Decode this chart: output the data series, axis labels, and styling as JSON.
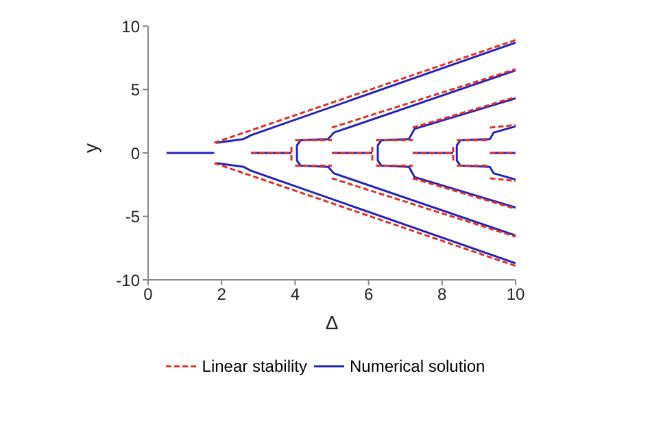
{
  "chart_data": {
    "type": "line",
    "xlabel": "Δ",
    "ylabel": "y",
    "xlim": [
      0,
      10
    ],
    "xticks": [
      0,
      2,
      4,
      6,
      8,
      10
    ],
    "ylim": [
      -10,
      10
    ],
    "yticks": [
      -10,
      -5,
      0,
      5,
      10
    ],
    "grid": false,
    "legend": "bottom",
    "marker": "none",
    "series": [
      {
        "name": "Linear stability",
        "color": "#e0312b",
        "line_style": "dashed",
        "x": [
          1.8,
          10
        ],
        "values": [
          0.8,
          8.9
        ]
      },
      {
        "color": "#e0312b",
        "line_style": "dashed",
        "x": [
          1.8,
          10
        ],
        "values": [
          -0.8,
          -8.9
        ]
      },
      {
        "color": "#e0312b",
        "line_style": "dashed",
        "x": [
          2.8,
          3.9
        ],
        "values": [
          0,
          0
        ]
      },
      {
        "color": "#e0312b",
        "line_style": "dashed",
        "x": [
          3.9,
          3.9
        ],
        "values": [
          -0.6,
          0.6
        ]
      },
      {
        "color": "#e0312b",
        "line_style": "dashed",
        "x": [
          4.0,
          5.0
        ],
        "values": [
          1.0,
          1.0
        ]
      },
      {
        "color": "#e0312b",
        "line_style": "dashed",
        "x": [
          4.0,
          5.0
        ],
        "values": [
          -1.0,
          -1.0
        ]
      },
      {
        "color": "#e0312b",
        "line_style": "dashed",
        "x": [
          5.0,
          10
        ],
        "values": [
          2.0,
          6.6
        ]
      },
      {
        "color": "#e0312b",
        "line_style": "dashed",
        "x": [
          5.0,
          10
        ],
        "values": [
          -2.0,
          -6.6
        ]
      },
      {
        "color": "#e0312b",
        "line_style": "dashed",
        "x": [
          5.0,
          6.1
        ],
        "values": [
          0,
          0
        ]
      },
      {
        "color": "#e0312b",
        "line_style": "dashed",
        "x": [
          6.1,
          6.1
        ],
        "values": [
          -0.6,
          0.6
        ]
      },
      {
        "color": "#e0312b",
        "line_style": "dashed",
        "x": [
          6.2,
          7.2
        ],
        "values": [
          1.0,
          1.0
        ]
      },
      {
        "color": "#e0312b",
        "line_style": "dashed",
        "x": [
          6.2,
          7.2
        ],
        "values": [
          -1.0,
          -1.0
        ]
      },
      {
        "color": "#e0312b",
        "line_style": "dashed",
        "x": [
          7.2,
          10
        ],
        "values": [
          2.0,
          4.4
        ]
      },
      {
        "color": "#e0312b",
        "line_style": "dashed",
        "x": [
          7.2,
          10
        ],
        "values": [
          -2.0,
          -4.4
        ]
      },
      {
        "color": "#e0312b",
        "line_style": "dashed",
        "x": [
          7.2,
          8.3
        ],
        "values": [
          0,
          0
        ]
      },
      {
        "color": "#e0312b",
        "line_style": "dashed",
        "x": [
          8.3,
          8.3
        ],
        "values": [
          -0.6,
          0.6
        ]
      },
      {
        "color": "#e0312b",
        "line_style": "dashed",
        "x": [
          8.4,
          9.3
        ],
        "values": [
          1.0,
          1.0
        ]
      },
      {
        "color": "#e0312b",
        "line_style": "dashed",
        "x": [
          8.4,
          9.3
        ],
        "values": [
          -1.0,
          -1.0
        ]
      },
      {
        "color": "#e0312b",
        "line_style": "dashed",
        "x": [
          9.3,
          10
        ],
        "values": [
          2.0,
          2.2
        ]
      },
      {
        "color": "#e0312b",
        "line_style": "dashed",
        "x": [
          9.3,
          10
        ],
        "values": [
          -2.0,
          -2.2
        ]
      },
      {
        "color": "#e0312b",
        "line_style": "dashed",
        "x": [
          9.3,
          10
        ],
        "values": [
          0,
          0
        ]
      },
      {
        "name": "Numerical solution",
        "color": "#2323b8",
        "line_style": "solid",
        "x": [
          0.5,
          1.8
        ],
        "values": [
          0,
          0
        ]
      },
      {
        "color": "#2323b8",
        "line_style": "solid",
        "x": [
          1.85,
          2.6,
          2.8,
          10
        ],
        "values": [
          0.8,
          1.1,
          1.4,
          8.7
        ]
      },
      {
        "color": "#2323b8",
        "line_style": "solid",
        "x": [
          1.85,
          2.6,
          2.8,
          10
        ],
        "values": [
          -0.8,
          -1.1,
          -1.4,
          -8.7
        ]
      },
      {
        "color": "#2323b8",
        "line_style": "solid",
        "x": [
          2.8,
          3.9
        ],
        "values": [
          0,
          0
        ]
      },
      {
        "color": "#2323b8",
        "line_style": "solid",
        "x": [
          10,
          5.05,
          4.9,
          4.15,
          4.05,
          4.05,
          4.15,
          4.9,
          5.05,
          10
        ],
        "values": [
          6.5,
          1.6,
          1.1,
          1.0,
          0.6,
          -0.6,
          -1.0,
          -1.1,
          -1.6,
          -6.5
        ]
      },
      {
        "color": "#2323b8",
        "line_style": "solid",
        "x": [
          5.0,
          6.1
        ],
        "values": [
          0,
          0
        ]
      },
      {
        "color": "#2323b8",
        "line_style": "solid",
        "x": [
          10,
          7.25,
          7.1,
          6.35,
          6.25,
          6.25,
          6.35,
          7.1,
          7.25,
          10
        ],
        "values": [
          4.3,
          1.9,
          1.1,
          1.0,
          0.6,
          -0.6,
          -1.0,
          -1.1,
          -1.9,
          -4.3
        ]
      },
      {
        "color": "#2323b8",
        "line_style": "solid",
        "x": [
          7.2,
          8.3
        ],
        "values": [
          0,
          0
        ]
      },
      {
        "color": "#2323b8",
        "line_style": "solid",
        "x": [
          10,
          9.4,
          9.3,
          8.5,
          8.4,
          8.4,
          8.5,
          9.3,
          9.4,
          10
        ],
        "values": [
          2.1,
          1.6,
          1.1,
          1.0,
          0.6,
          -0.6,
          -1.0,
          -1.1,
          -1.6,
          -2.1
        ]
      },
      {
        "color": "#2323b8",
        "line_style": "solid",
        "x": [
          9.3,
          10
        ],
        "values": [
          0,
          0
        ]
      }
    ]
  }
}
